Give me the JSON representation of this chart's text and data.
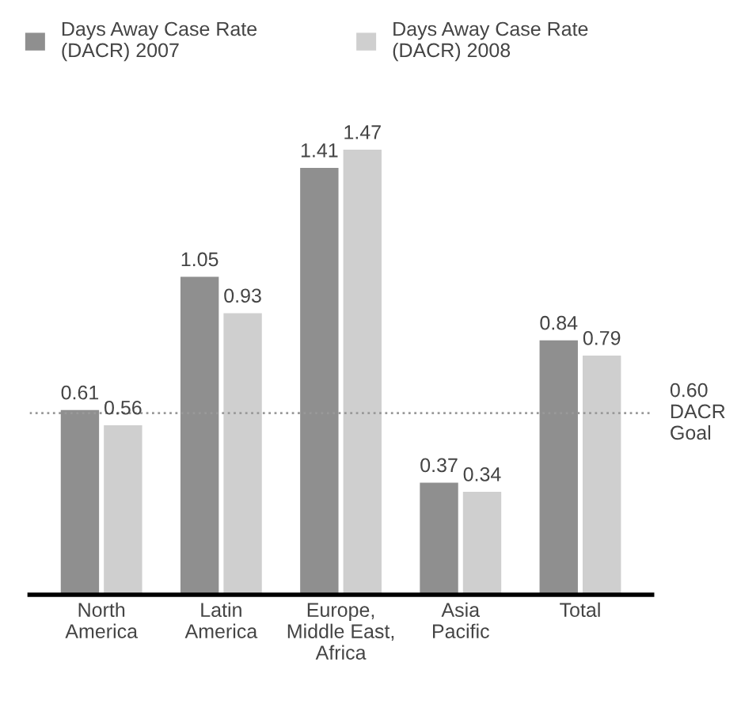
{
  "chart_data": {
    "type": "bar",
    "categories": [
      "North\nAmerica",
      "Latin\nAmerica",
      "Europe,\nMiddle East,\nAfrica",
      "Asia\nPacific",
      "Total"
    ],
    "series": [
      {
        "name": "Days Away Case Rate\n(DACR) 2007",
        "color": "#8f8f8f",
        "values": [
          0.61,
          1.05,
          1.41,
          0.37,
          0.84
        ]
      },
      {
        "name": "Days Away Case Rate\n(DACR) 2008",
        "color": "#cfcfcf",
        "values": [
          0.56,
          0.93,
          1.47,
          0.34,
          0.79
        ]
      }
    ],
    "data_labels": true,
    "ref_lines": [
      {
        "axis": "y",
        "value": 0.6,
        "label": "0.60\nDACR\nGoal",
        "color": "#999999",
        "line_style": "dotted"
      }
    ],
    "legend": "top left",
    "grid": false
  }
}
